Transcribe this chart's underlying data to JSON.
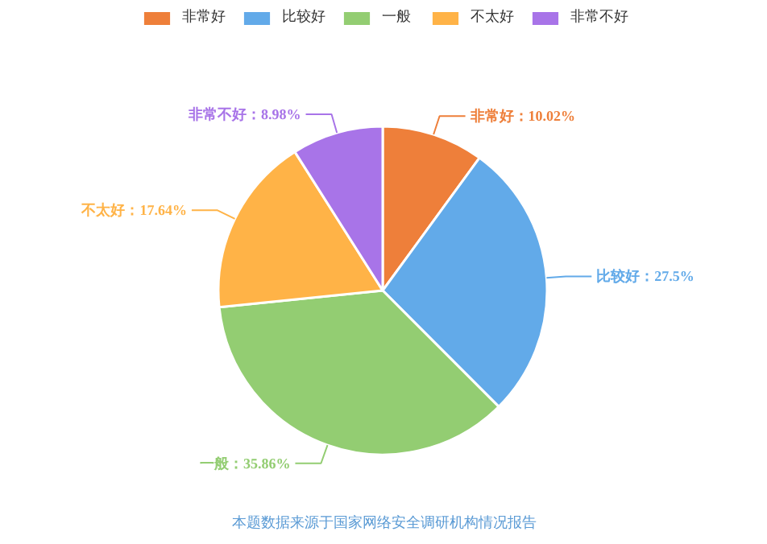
{
  "chart_data": {
    "type": "pie",
    "categories": [
      "非常好",
      "比较好",
      "一般",
      "不太好",
      "非常不好"
    ],
    "values": [
      10.02,
      27.5,
      35.86,
      17.64,
      8.98
    ],
    "value_labels": [
      "非常好：10.02%",
      "比较好：27.5%",
      "一般：35.86%",
      "不太好：17.64%",
      "非常不好：8.98%"
    ],
    "colors": [
      "#ee7f3a",
      "#62aae9",
      "#93cd72",
      "#ffb347",
      "#a874e8"
    ],
    "legend": "top",
    "annotations": [
      "本题数据来源于国家网络安全调研机构情况报告"
    ]
  }
}
